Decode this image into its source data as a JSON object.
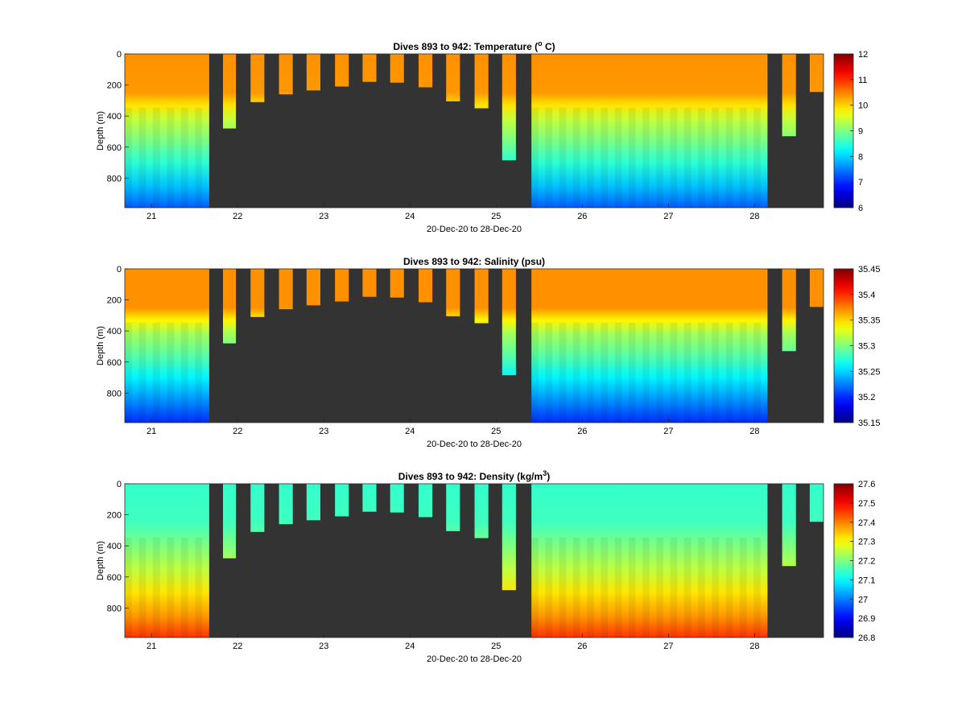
{
  "figure": {
    "x_tick_labels": [
      "21",
      "22",
      "23",
      "24",
      "25",
      "26",
      "27",
      "28"
    ],
    "x_tick_values": [
      21,
      22,
      23,
      24,
      25,
      26,
      27,
      28
    ],
    "x_range": [
      20.69,
      28.8
    ],
    "y_range": [
      0,
      990
    ],
    "y_reversed": true,
    "no_data_color": "#333333",
    "colormap": "jet"
  },
  "chart_data": [
    {
      "type": "heatmap",
      "title_main": "Dives 893 to 942: Temperature (",
      "title_sup": "o",
      "title_end": " C)",
      "xlabel": "20-Dec-20 to 28-Dec-20",
      "ylabel": "Depth (m)",
      "y_ticks": [
        "0",
        "200",
        "400",
        "600",
        "800"
      ],
      "y_tick_values": [
        0,
        200,
        400,
        600,
        800
      ],
      "clim": [
        6,
        12
      ],
      "colorbar_ticks": [
        "6",
        "7",
        "8",
        "9",
        "10",
        "11",
        "12"
      ],
      "colorbar_tick_values": [
        6,
        7,
        8,
        9,
        10,
        11,
        12
      ],
      "profile": [
        {
          "depth": 0,
          "value": 10.4
        },
        {
          "depth": 250,
          "value": 10.35
        },
        {
          "depth": 330,
          "value": 9.9
        },
        {
          "depth": 420,
          "value": 9.4
        },
        {
          "depth": 550,
          "value": 9.0
        },
        {
          "depth": 700,
          "value": 8.5
        },
        {
          "depth": 850,
          "value": 7.9
        },
        {
          "depth": 990,
          "value": 7.3
        }
      ]
    },
    {
      "type": "heatmap",
      "title_main": "Dives 893 to 942: Salinity (psu)",
      "title_sup": "",
      "title_end": "",
      "xlabel": "20-Dec-20 to 28-Dec-20",
      "ylabel": "Depth (m)",
      "y_ticks": [
        "0",
        "200",
        "400",
        "600",
        "800"
      ],
      "y_tick_values": [
        0,
        200,
        400,
        600,
        800
      ],
      "clim": [
        35.15,
        35.45
      ],
      "colorbar_ticks": [
        "35.15",
        "35.2",
        "35.25",
        "35.3",
        "35.35",
        "35.4",
        "35.45"
      ],
      "colorbar_tick_values": [
        35.15,
        35.2,
        35.25,
        35.3,
        35.35,
        35.4,
        35.45
      ],
      "profile": [
        {
          "depth": 0,
          "value": 35.37
        },
        {
          "depth": 250,
          "value": 35.37
        },
        {
          "depth": 330,
          "value": 35.34
        },
        {
          "depth": 420,
          "value": 35.31
        },
        {
          "depth": 550,
          "value": 35.29
        },
        {
          "depth": 700,
          "value": 35.26
        },
        {
          "depth": 850,
          "value": 35.23
        },
        {
          "depth": 990,
          "value": 35.2
        }
      ]
    },
    {
      "type": "heatmap",
      "title_main": "Dives 893 to 942: Density (kg/m",
      "title_sup": "3",
      "title_end": ")",
      "xlabel": "20-Dec-20 to 28-Dec-20",
      "ylabel": "Depth (m)",
      "y_ticks": [
        "0",
        "200",
        "400",
        "600",
        "800"
      ],
      "y_tick_values": [
        0,
        200,
        400,
        600,
        800
      ],
      "clim": [
        26.8,
        27.6
      ],
      "colorbar_ticks": [
        "26.8",
        "26.9",
        "27",
        "27.1",
        "27.2",
        "27.3",
        "27.4",
        "27.5",
        "27.6"
      ],
      "colorbar_tick_values": [
        26.8,
        26.9,
        27.0,
        27.1,
        27.2,
        27.3,
        27.4,
        27.5,
        27.6
      ],
      "profile": [
        {
          "depth": 0,
          "value": 27.14
        },
        {
          "depth": 250,
          "value": 27.15
        },
        {
          "depth": 400,
          "value": 27.2
        },
        {
          "depth": 550,
          "value": 27.25
        },
        {
          "depth": 700,
          "value": 27.32
        },
        {
          "depth": 850,
          "value": 27.38
        },
        {
          "depth": 990,
          "value": 27.46
        }
      ]
    }
  ],
  "dive_segments": [
    {
      "type": "dense",
      "x_start": 20.69,
      "x_end": 21.67,
      "max_depth": 990
    },
    {
      "type": "bar",
      "x_start": 21.83,
      "x_end": 21.98,
      "max_depth": 480
    },
    {
      "type": "bar",
      "x_start": 22.15,
      "x_end": 22.31,
      "max_depth": 310
    },
    {
      "type": "bar",
      "x_start": 22.48,
      "x_end": 22.64,
      "max_depth": 260
    },
    {
      "type": "bar",
      "x_start": 22.8,
      "x_end": 22.96,
      "max_depth": 235
    },
    {
      "type": "bar",
      "x_start": 23.13,
      "x_end": 23.29,
      "max_depth": 210
    },
    {
      "type": "bar",
      "x_start": 23.45,
      "x_end": 23.61,
      "max_depth": 180
    },
    {
      "type": "bar",
      "x_start": 23.77,
      "x_end": 23.93,
      "max_depth": 185
    },
    {
      "type": "bar",
      "x_start": 24.1,
      "x_end": 24.26,
      "max_depth": 215
    },
    {
      "type": "bar",
      "x_start": 24.42,
      "x_end": 24.58,
      "max_depth": 305
    },
    {
      "type": "bar",
      "x_start": 24.75,
      "x_end": 24.91,
      "max_depth": 350
    },
    {
      "type": "bar",
      "x_start": 25.07,
      "x_end": 25.23,
      "max_depth": 685
    },
    {
      "type": "dense",
      "x_start": 25.41,
      "x_end": 28.15,
      "max_depth": 990
    },
    {
      "type": "bar",
      "x_start": 28.32,
      "x_end": 28.48,
      "max_depth": 530
    },
    {
      "type": "bar",
      "x_start": 28.64,
      "x_end": 28.8,
      "max_depth": 245
    }
  ]
}
